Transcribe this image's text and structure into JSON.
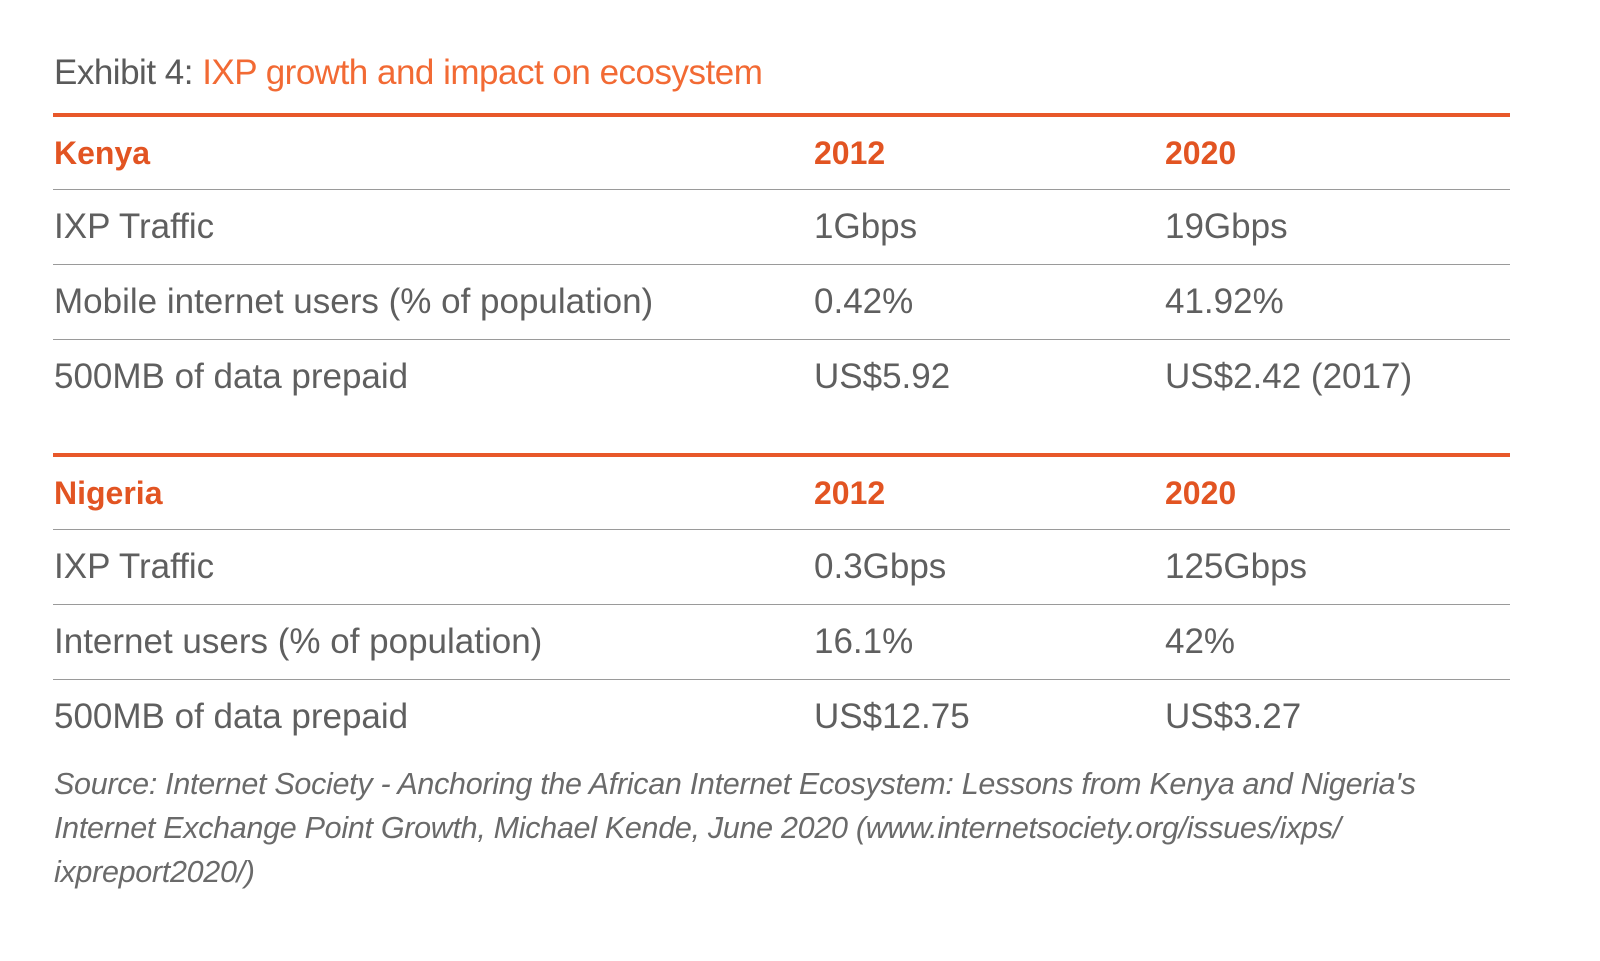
{
  "title": {
    "prefix": "Exhibit 4: ",
    "text": "IXP growth and impact on ecosystem"
  },
  "colors": {
    "accent": "#f26a34",
    "header": "#e25422",
    "text": "#5f5f5f"
  },
  "tables": [
    {
      "country": "Kenya",
      "years": [
        "2012",
        "2020"
      ],
      "rows": [
        {
          "metric": "IXP Traffic",
          "v2012": "1Gbps",
          "v2020": "19Gbps"
        },
        {
          "metric": "Mobile internet users (% of population)",
          "v2012": "0.42%",
          "v2020": "41.92%"
        },
        {
          "metric": "500MB of data prepaid",
          "v2012": "US$5.92",
          "v2020": "US$2.42 (2017)"
        }
      ]
    },
    {
      "country": "Nigeria",
      "years": [
        "2012",
        "2020"
      ],
      "rows": [
        {
          "metric": "IXP Traffic",
          "v2012": "0.3Gbps",
          "v2020": "125Gbps"
        },
        {
          "metric": "Internet users (% of population)",
          "v2012": "16.1%",
          "v2020": "42%"
        },
        {
          "metric": "500MB of data prepaid",
          "v2012": "US$12.75",
          "v2020": "US$3.27"
        }
      ]
    }
  ],
  "source": {
    "line1": "Source: Internet Society - Anchoring the African Internet Ecosystem: Lessons from Kenya and Nigeria's",
    "line2": "Internet Exchange Point Growth, Michael Kende, June 2020 (www.internetsociety.org/issues/ixps/",
    "line3": "ixpreport2020/)"
  }
}
